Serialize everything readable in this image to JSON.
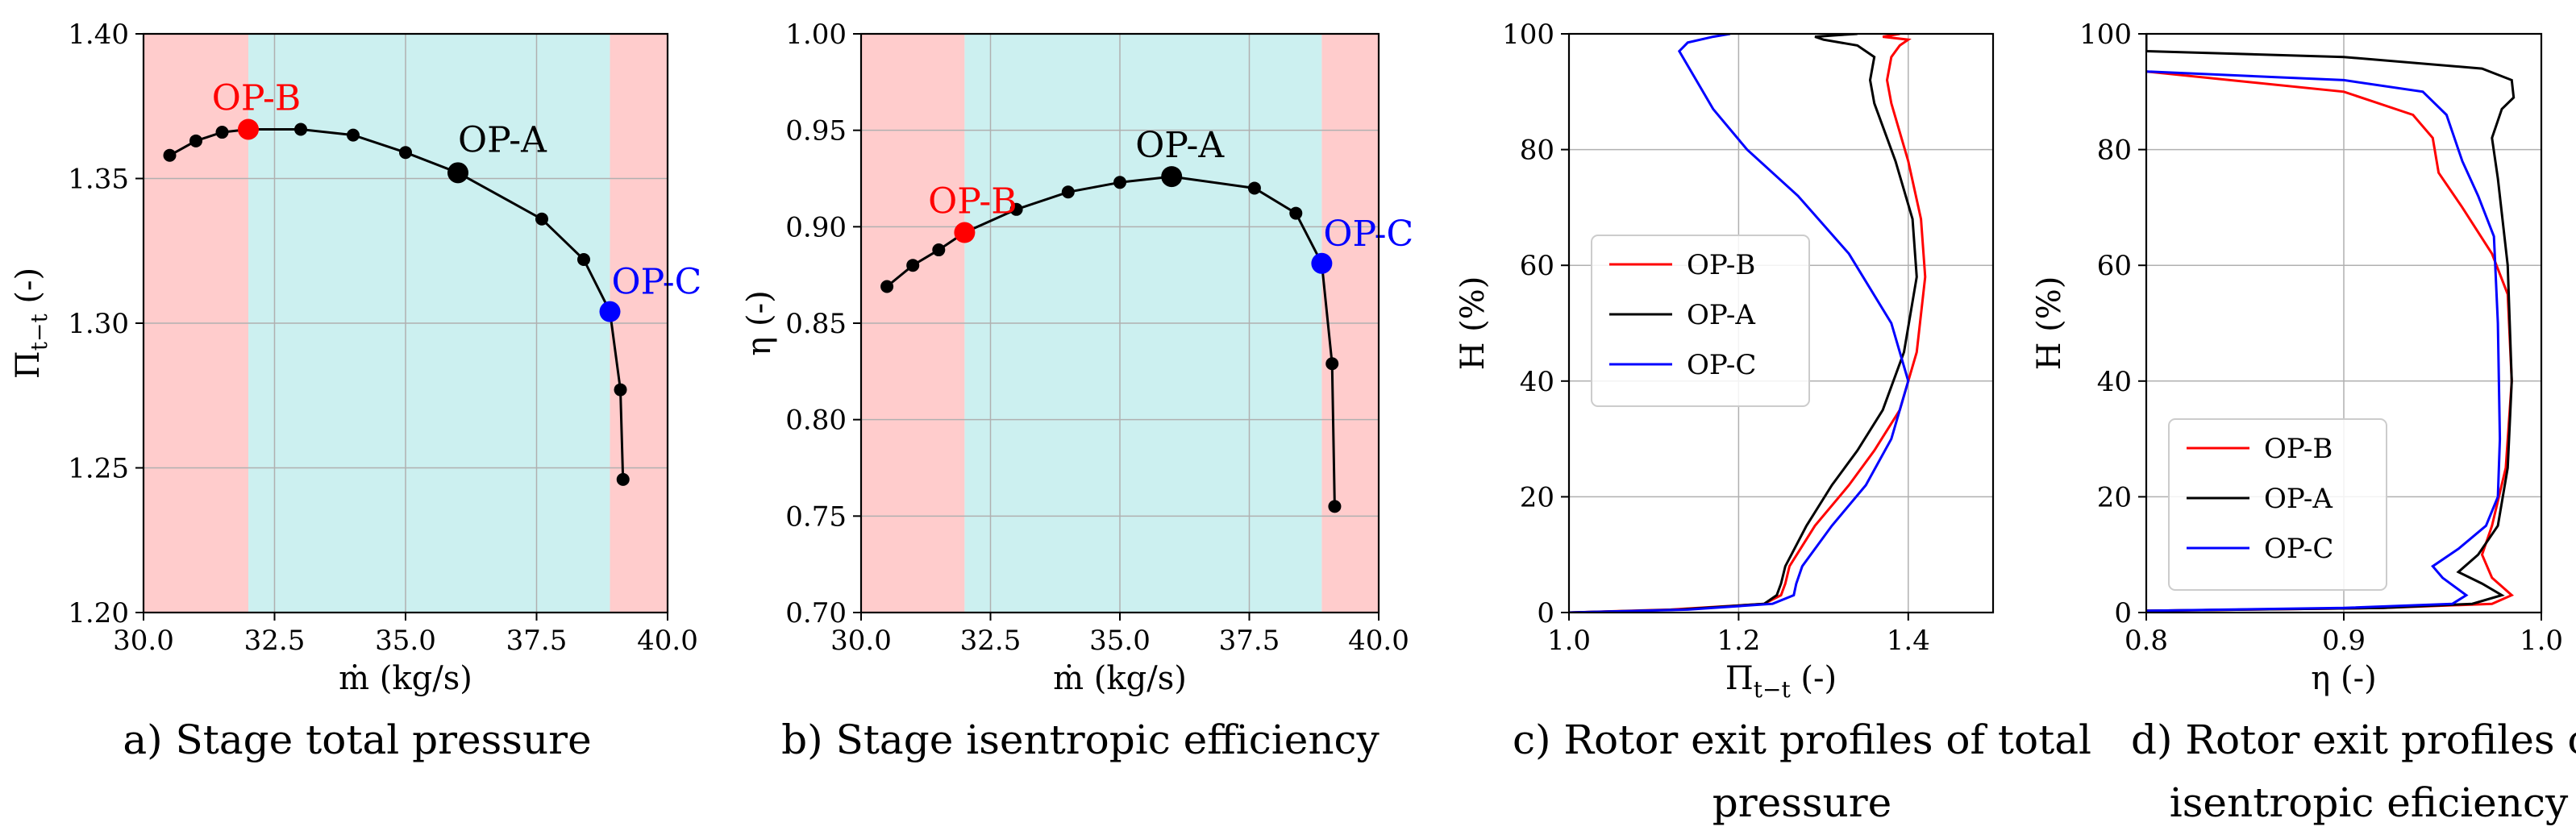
{
  "chart_data": [
    {
      "type": "line",
      "panel": "a",
      "caption": "a) Stage total pressure",
      "xlabel": "ṁ (kg/s)",
      "ylabel": "Π",
      "ylabel_sub": "t−t",
      "ylabel_suffix": " (-)",
      "xlim": [
        30.0,
        40.0
      ],
      "ylim": [
        1.2,
        1.4
      ],
      "xticks": [
        "30.0",
        "32.5",
        "35.0",
        "37.5",
        "40.0"
      ],
      "yticks": [
        "1.20",
        "1.25",
        "1.30",
        "1.35",
        "1.40"
      ],
      "regions": [
        {
          "from": 30.0,
          "to": 32.0,
          "color": "#ffcccc"
        },
        {
          "from": 32.0,
          "to": 38.9,
          "color": "#ccf0f0"
        },
        {
          "from": 38.9,
          "to": 40.0,
          "color": "#ffcccc"
        }
      ],
      "series": [
        {
          "name": "characteristic",
          "color": "#000000",
          "x": [
            30.5,
            31.0,
            31.5,
            32.0,
            33.0,
            34.0,
            35.0,
            36.0,
            37.6,
            38.4,
            38.9,
            39.1,
            39.15
          ],
          "y": [
            1.358,
            1.363,
            1.366,
            1.367,
            1.367,
            1.365,
            1.359,
            1.352,
            1.336,
            1.322,
            1.304,
            1.277,
            1.246
          ]
        }
      ],
      "operating_points": [
        {
          "label": "OP-B",
          "x": 32.0,
          "y": 1.367,
          "color": "#ff0000",
          "anchor": "above"
        },
        {
          "label": "OP-A",
          "x": 36.0,
          "y": 1.352,
          "color": "#000000",
          "anchor": "above-right"
        },
        {
          "label": "OP-C",
          "x": 38.9,
          "y": 1.304,
          "color": "#0000ff",
          "anchor": "above-right"
        }
      ]
    },
    {
      "type": "line",
      "panel": "b",
      "caption": "b) Stage isentropic efficiency",
      "xlabel": "ṁ (kg/s)",
      "ylabel": "η (-)",
      "xlim": [
        30.0,
        40.0
      ],
      "ylim": [
        0.7,
        1.0
      ],
      "xticks": [
        "30.0",
        "32.5",
        "35.0",
        "37.5",
        "40.0"
      ],
      "yticks": [
        "0.70",
        "0.75",
        "0.80",
        "0.85",
        "0.90",
        "0.95",
        "1.00"
      ],
      "regions": [
        {
          "from": 30.0,
          "to": 32.0,
          "color": "#ffcccc"
        },
        {
          "from": 32.0,
          "to": 38.9,
          "color": "#ccf0f0"
        },
        {
          "from": 38.9,
          "to": 40.0,
          "color": "#ffcccc"
        }
      ],
      "series": [
        {
          "name": "characteristic",
          "color": "#000000",
          "x": [
            30.5,
            31.0,
            31.5,
            32.0,
            33.0,
            34.0,
            35.0,
            36.0,
            37.6,
            38.4,
            38.9,
            39.1,
            39.15
          ],
          "y": [
            0.869,
            0.88,
            0.888,
            0.897,
            0.909,
            0.918,
            0.923,
            0.926,
            0.92,
            0.907,
            0.881,
            0.829,
            0.755
          ]
        }
      ],
      "operating_points": [
        {
          "label": "OP-B",
          "x": 32.0,
          "y": 0.897,
          "color": "#ff0000",
          "anchor": "above"
        },
        {
          "label": "OP-A",
          "x": 36.0,
          "y": 0.926,
          "color": "#000000",
          "anchor": "above"
        },
        {
          "label": "OP-C",
          "x": 38.9,
          "y": 0.881,
          "color": "#0000ff",
          "anchor": "above-right"
        }
      ]
    },
    {
      "type": "line",
      "panel": "c",
      "caption": [
        "c) Rotor exit profiles of total",
        "pressure"
      ],
      "xlabel": "Π",
      "xlabel_sub": "t−t",
      "xlabel_suffix": " (-)",
      "ylabel": "H (%)",
      "xlim": [
        1.0,
        1.5
      ],
      "ylim": [
        0,
        100
      ],
      "xticks": [
        "1.0",
        "1.2",
        "1.4"
      ],
      "xtick_values": [
        1.0,
        1.2,
        1.4
      ],
      "yticks": [
        "0",
        "20",
        "40",
        "60",
        "80",
        "100"
      ],
      "legend_position": "center-left",
      "series": [
        {
          "name": "OP-B",
          "color": "#ff0000",
          "x": [
            1.0,
            1.12,
            1.23,
            1.25,
            1.255,
            1.26,
            1.29,
            1.33,
            1.36,
            1.39,
            1.41,
            1.42,
            1.415,
            1.4,
            1.38,
            1.375,
            1.38,
            1.39,
            1.4,
            1.37,
            1.39
          ],
          "y": [
            0,
            0.5,
            1.5,
            3,
            5,
            8,
            15,
            22,
            28,
            35,
            45,
            58,
            68,
            78,
            88,
            92,
            96,
            98,
            99,
            99.5,
            100
          ]
        },
        {
          "name": "OP-A",
          "color": "#000000",
          "x": [
            1.0,
            1.13,
            1.23,
            1.245,
            1.25,
            1.255,
            1.28,
            1.31,
            1.34,
            1.37,
            1.395,
            1.41,
            1.405,
            1.385,
            1.36,
            1.355,
            1.36,
            1.34,
            1.3,
            1.29,
            1.32,
            1.34
          ],
          "y": [
            0,
            0.5,
            1.5,
            3,
            5,
            8,
            15,
            22,
            28,
            35,
            45,
            58,
            68,
            78,
            88,
            92,
            96,
            98,
            99,
            99.5,
            99.8,
            100
          ]
        },
        {
          "name": "OP-C",
          "color": "#0000ff",
          "x": [
            1.0,
            1.14,
            1.24,
            1.265,
            1.268,
            1.275,
            1.31,
            1.35,
            1.38,
            1.4,
            1.38,
            1.33,
            1.27,
            1.21,
            1.17,
            1.15,
            1.13,
            1.14,
            1.17,
            1.19
          ],
          "y": [
            0,
            0.5,
            1.5,
            3,
            5,
            8,
            15,
            22,
            30,
            40,
            50,
            62,
            72,
            80,
            87,
            92,
            97,
            98.5,
            99.5,
            100
          ]
        }
      ]
    },
    {
      "type": "line",
      "panel": "d",
      "caption": [
        "d) Rotor exit profiles of",
        "isentropic eficiency"
      ],
      "xlabel": "η (-)",
      "ylabel": "H (%)",
      "xlim": [
        0.8,
        1.0
      ],
      "ylim": [
        0,
        100
      ],
      "xticks": [
        "0.8",
        "0.9",
        "1.0"
      ],
      "xtick_values": [
        0.8,
        0.9,
        1.0
      ],
      "yticks": [
        "0",
        "20",
        "40",
        "60",
        "80",
        "100"
      ],
      "legend_position": "lower-left",
      "series": [
        {
          "name": "OP-B",
          "color": "#ff0000",
          "x": [
            0.8,
            0.92,
            0.975,
            0.985,
            0.975,
            0.97,
            0.975,
            0.982,
            0.985,
            0.983,
            0.975,
            0.96,
            0.948,
            0.945,
            0.935,
            0.9,
            0.8
          ],
          "y": [
            0.3,
            0.8,
            1.5,
            3,
            6,
            10,
            15,
            25,
            40,
            55,
            62,
            70,
            76,
            82,
            86,
            90,
            93.5
          ]
        },
        {
          "name": "OP-A",
          "color": "#000000",
          "x": [
            0.8,
            0.92,
            0.965,
            0.98,
            0.97,
            0.958,
            0.968,
            0.978,
            0.983,
            0.985,
            0.983,
            0.978,
            0.975,
            0.98,
            0.986,
            0.985,
            0.97,
            0.9,
            0.8,
            0.8
          ],
          "y": [
            0.3,
            0.8,
            1.5,
            3,
            5,
            7,
            10,
            15,
            25,
            40,
            60,
            75,
            82,
            87,
            89,
            92,
            94,
            96,
            97,
            100
          ]
        },
        {
          "name": "OP-C",
          "color": "#0000ff",
          "x": [
            0.8,
            0.9,
            0.955,
            0.962,
            0.95,
            0.945,
            0.958,
            0.972,
            0.978,
            0.979,
            0.978,
            0.976,
            0.968,
            0.96,
            0.956,
            0.952,
            0.94,
            0.9,
            0.8
          ],
          "y": [
            0.3,
            0.8,
            1.5,
            3,
            6,
            8,
            11,
            15,
            20,
            30,
            50,
            65,
            72,
            78,
            82,
            86,
            90,
            92,
            93.5
          ]
        }
      ]
    }
  ]
}
